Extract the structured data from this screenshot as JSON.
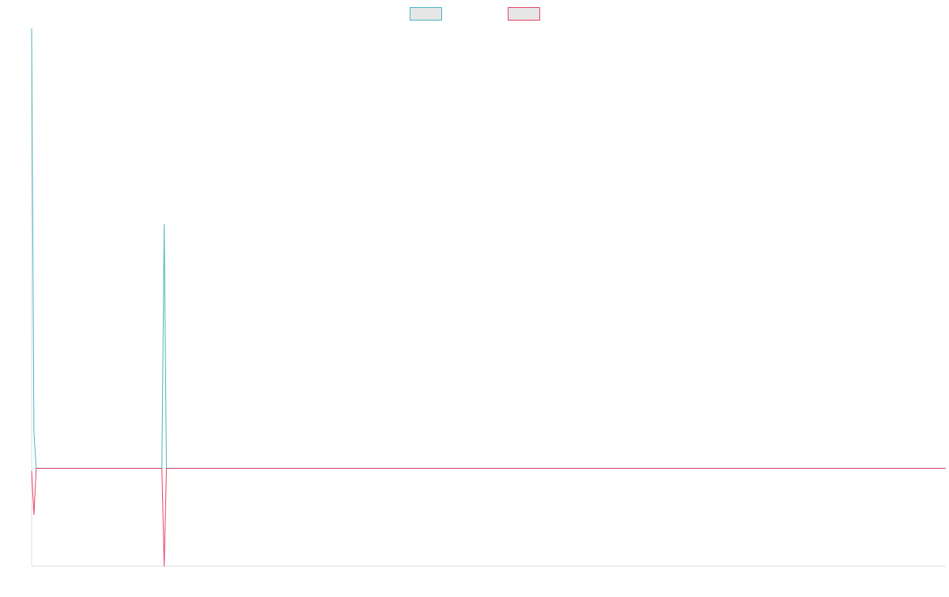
{
  "chart_data": {
    "type": "line",
    "title": "",
    "xlabel": "",
    "ylabel": "",
    "grid": false,
    "legend_placement": "top-center",
    "x_range": [
      0,
      400
    ],
    "ylim": [
      -40,
      180
    ],
    "series": [
      {
        "color": "#4bb6c0",
        "points": [
          [
            0,
            180
          ],
          [
            1,
            15
          ],
          [
            2,
            0
          ],
          [
            57,
            0
          ],
          [
            58,
            100
          ],
          [
            59,
            0
          ],
          [
            400,
            0
          ]
        ]
      },
      {
        "color": "#e8456a",
        "points": [
          [
            0,
            -1
          ],
          [
            1,
            -19
          ],
          [
            2,
            0
          ],
          [
            57,
            0
          ],
          [
            58,
            -40
          ],
          [
            59,
            0
          ],
          [
            400,
            0
          ]
        ]
      }
    ]
  },
  "colors": {
    "axis": "#dddddd",
    "legend_fill": "#e6e6e6"
  }
}
